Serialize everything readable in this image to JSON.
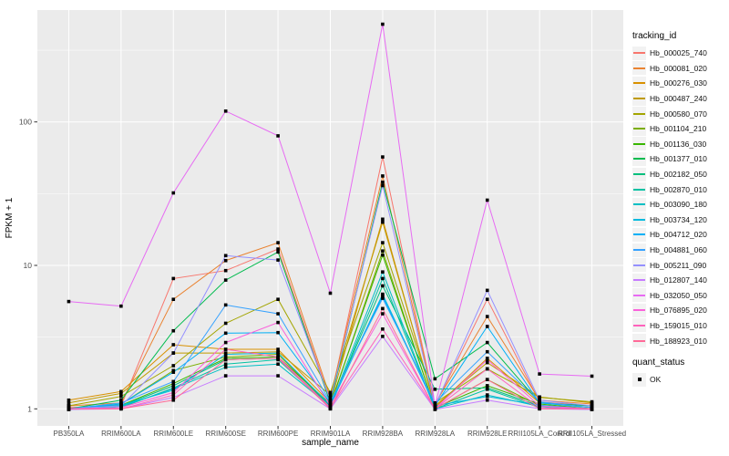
{
  "figure": {
    "background": "#FFFFFF",
    "panel_background": "#EBEBEB",
    "grid_color": "#FFFFFF",
    "axis_text_color": "#4D4D4D",
    "tick_color": "#333333",
    "point_color": "#000000"
  },
  "chart_data": {
    "type": "line",
    "title": "",
    "xlabel": "sample_name",
    "ylabel": "FPKM + 1",
    "y_scale": "log10",
    "y_ticks": [
      1,
      10,
      100
    ],
    "y_minor": [
      3.162,
      31.623,
      316.228
    ],
    "ylim": [
      0.75,
      600
    ],
    "grid": true,
    "legend_position": "right",
    "point_shape": "square",
    "categories": [
      "PB350LA",
      "RRIM600LA",
      "RRIM600LE",
      "RRIM600SE",
      "RRIM600PE",
      "RRIM901LA",
      "RRIM928BA",
      "RRIM928LA",
      "RRIM928LE",
      "RRII105LA_Control",
      "RRII105LA_Stressed"
    ],
    "series": [
      {
        "name": "Hb_000025_740",
        "color": "#F8766D",
        "values": [
          1.02,
          1.05,
          8.1,
          9.2,
          13.0,
          1.15,
          57,
          1.05,
          5.8,
          1.12,
          1.05
        ]
      },
      {
        "name": "Hb_000081_020",
        "color": "#EA8331",
        "values": [
          1.05,
          1.1,
          5.8,
          10.8,
          14.4,
          1.2,
          42,
          1.08,
          4.4,
          1.15,
          1.08
        ]
      },
      {
        "name": "Hb_000276_030",
        "color": "#D89000",
        "values": [
          1.15,
          1.32,
          2.8,
          2.6,
          2.6,
          1.1,
          21,
          1.02,
          2.25,
          1.1,
          1.02
        ]
      },
      {
        "name": "Hb_000487_240",
        "color": "#C09B00",
        "values": [
          1.1,
          1.28,
          2.45,
          2.45,
          2.5,
          1.25,
          20,
          1.05,
          2.1,
          1.21,
          1.1
        ]
      },
      {
        "name": "Hb_000580_070",
        "color": "#A3A500",
        "values": [
          1.05,
          1.22,
          2.0,
          3.95,
          5.8,
          1.3,
          14.4,
          1.1,
          1.9,
          1.2,
          1.12
        ]
      },
      {
        "name": "Hb_001104_210",
        "color": "#7CAE00",
        "values": [
          1.0,
          1.08,
          1.85,
          2.3,
          2.4,
          1.05,
          12.6,
          1.0,
          1.6,
          1.05,
          1.0
        ]
      },
      {
        "name": "Hb_001136_030",
        "color": "#39B600",
        "values": [
          1.0,
          1.06,
          1.5,
          2.25,
          2.3,
          1.08,
          11.8,
          1.02,
          1.45,
          1.08,
          1.0
        ]
      },
      {
        "name": "Hb_001377_010",
        "color": "#00BB4E",
        "values": [
          1.0,
          1.15,
          3.5,
          7.9,
          12.4,
          1.1,
          38,
          1.62,
          2.9,
          1.1,
          1.05
        ]
      },
      {
        "name": "Hb_002182_050",
        "color": "#00BF7D",
        "values": [
          1.0,
          1.05,
          1.45,
          2.2,
          2.25,
          1.05,
          7.2,
          1.37,
          1.4,
          1.05,
          1.0
        ]
      },
      {
        "name": "Hb_002870_010",
        "color": "#00C1A3",
        "values": [
          0.99,
          1.02,
          1.4,
          2.05,
          2.2,
          1.02,
          8.1,
          1.0,
          1.37,
          1.02,
          0.99
        ]
      },
      {
        "name": "Hb_003090_180",
        "color": "#00BFC4",
        "values": [
          1.0,
          1.04,
          1.38,
          1.95,
          2.05,
          1.04,
          9.0,
          1.0,
          1.25,
          1.04,
          1.0
        ]
      },
      {
        "name": "Hb_003734_120",
        "color": "#00BADE",
        "values": [
          1.0,
          1.06,
          1.35,
          2.4,
          2.45,
          1.06,
          6.3,
          1.05,
          1.22,
          1.06,
          1.0
        ]
      },
      {
        "name": "Hb_004712_020",
        "color": "#00B0F6",
        "values": [
          1.0,
          1.08,
          1.8,
          3.37,
          3.4,
          1.1,
          6.1,
          1.05,
          3.75,
          1.1,
          1.02
        ]
      },
      {
        "name": "Hb_004881_060",
        "color": "#35A2FF",
        "values": [
          1.0,
          1.1,
          1.55,
          5.3,
          4.6,
          1.12,
          5.9,
          1.1,
          2.5,
          1.12,
          1.02
        ]
      },
      {
        "name": "Hb_005211_090",
        "color": "#9590FF",
        "values": [
          1.0,
          1.05,
          2.45,
          11.7,
          10.9,
          1.15,
          36,
          1.05,
          6.7,
          1.15,
          1.05
        ]
      },
      {
        "name": "Hb_012807_140",
        "color": "#C77CFF",
        "values": [
          0.99,
          1.0,
          1.2,
          1.7,
          1.7,
          1.0,
          3.2,
          0.99,
          1.15,
          1.0,
          0.99
        ]
      },
      {
        "name": "Hb_032050_050",
        "color": "#E76BF3",
        "values": [
          5.6,
          5.2,
          32,
          119,
          80,
          6.4,
          480,
          1.05,
          28.5,
          1.75,
          1.69
        ]
      },
      {
        "name": "Hb_076895_020",
        "color": "#FA62DB",
        "values": [
          1.0,
          1.02,
          1.3,
          2.9,
          4.0,
          1.05,
          4.6,
          1.0,
          2.2,
          1.05,
          1.0
        ]
      },
      {
        "name": "Hb_159015_010",
        "color": "#FF62BC",
        "values": [
          1.0,
          1.0,
          1.25,
          2.6,
          2.3,
          1.02,
          3.6,
          1.0,
          1.9,
          1.02,
          1.0
        ]
      },
      {
        "name": "Hb_188923_010",
        "color": "#FF6A98",
        "values": [
          1.0,
          1.0,
          1.15,
          2.2,
          2.25,
          1.0,
          5.0,
          1.0,
          1.6,
          1.0,
          1.0
        ]
      }
    ],
    "legend": {
      "tracking_title": "tracking_id",
      "quant_title": "quant_status",
      "quant_items": [
        {
          "label": "OK"
        }
      ]
    }
  }
}
